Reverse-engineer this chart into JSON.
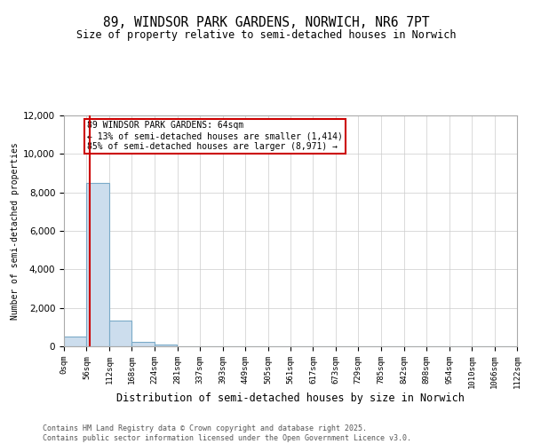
{
  "title": "89, WINDSOR PARK GARDENS, NORWICH, NR6 7PT",
  "subtitle": "Size of property relative to semi-detached houses in Norwich",
  "xlabel": "Distribution of semi-detached houses by size in Norwich",
  "ylabel": "Number of semi-detached properties",
  "bin_edges": [
    0,
    56,
    112,
    168,
    224,
    281,
    337,
    393,
    449,
    505,
    561,
    617,
    673,
    729,
    785,
    842,
    898,
    954,
    1010,
    1066,
    1122
  ],
  "bin_labels": [
    "0sqm",
    "56sqm",
    "112sqm",
    "168sqm",
    "224sqm",
    "281sqm",
    "337sqm",
    "393sqm",
    "449sqm",
    "505sqm",
    "561sqm",
    "617sqm",
    "673sqm",
    "729sqm",
    "785sqm",
    "842sqm",
    "898sqm",
    "954sqm",
    "1010sqm",
    "1066sqm",
    "1122sqm"
  ],
  "bar_heights": [
    530,
    8500,
    1350,
    250,
    100,
    10,
    5,
    2,
    1,
    0,
    0,
    0,
    0,
    0,
    0,
    0,
    0,
    0,
    0,
    0
  ],
  "bar_color": "#ccdded",
  "bar_edge_color": "#7aaac8",
  "property_size": 64,
  "red_line_color": "#cc0000",
  "annotation_text": "89 WINDSOR PARK GARDENS: 64sqm\n← 13% of semi-detached houses are smaller (1,414)\n85% of semi-detached houses are larger (8,971) →",
  "annotation_box_color": "#cc0000",
  "ylim": [
    0,
    12000
  ],
  "yticks": [
    0,
    2000,
    4000,
    6000,
    8000,
    10000,
    12000
  ],
  "footer": "Contains HM Land Registry data © Crown copyright and database right 2025.\nContains public sector information licensed under the Open Government Licence v3.0.",
  "background_color": "#ffffff",
  "grid_color": "#cccccc"
}
